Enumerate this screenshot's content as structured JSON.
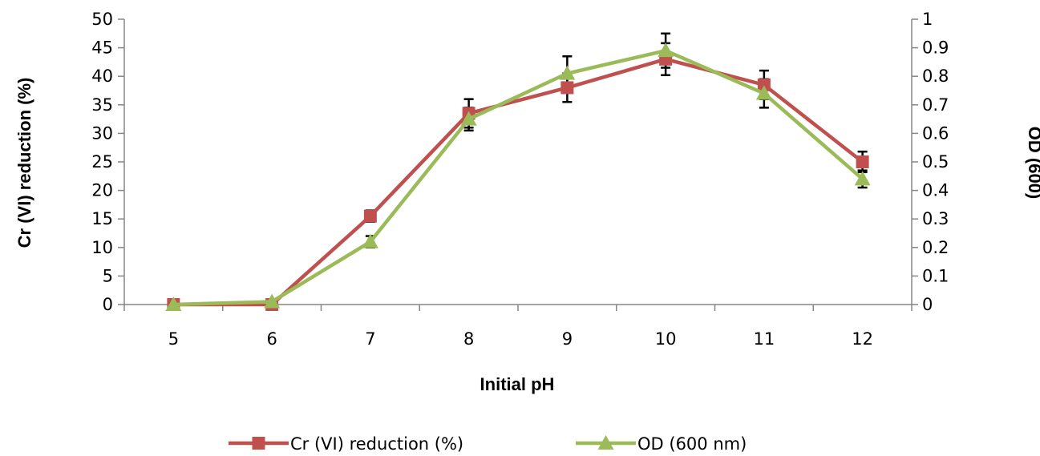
{
  "chart_data": {
    "type": "line",
    "xlabel": "Initial pH",
    "ylabel": "Cr (VI) reduction (%)",
    "y2label": "OD (600)",
    "categories": [
      "5",
      "6",
      "7",
      "8",
      "9",
      "10",
      "11",
      "12"
    ],
    "ylim": [
      0,
      50
    ],
    "y2lim": [
      0,
      1
    ],
    "yticks": [
      "0",
      "5",
      "10",
      "15",
      "20",
      "25",
      "30",
      "35",
      "40",
      "45",
      "50"
    ],
    "y2ticks": [
      "0",
      "0.1",
      "0.2",
      "0.3",
      "0.4",
      "0.5",
      "0.6",
      "0.7",
      "0.8",
      "0.9",
      "1"
    ],
    "grid": false,
    "legend_position": "bottom",
    "series": [
      {
        "name": "Cr (VI) reduction (%)",
        "axis": "left",
        "color": "#C0504D",
        "marker": "square",
        "values": [
          0,
          0,
          15.5,
          33.5,
          38,
          43,
          38.5,
          25
        ],
        "errors": [
          0,
          0,
          1,
          2.5,
          2.5,
          2.8,
          2.5,
          1.8
        ]
      },
      {
        "name": "OD (600 nm)",
        "axis": "right",
        "color": "#9BBB59",
        "marker": "triangle",
        "values": [
          0,
          0.01,
          0.22,
          0.65,
          0.81,
          0.89,
          0.74,
          0.44
        ],
        "errors": [
          0,
          0,
          0.02,
          0.04,
          0.06,
          0.06,
          0.05,
          0.03
        ]
      }
    ]
  }
}
